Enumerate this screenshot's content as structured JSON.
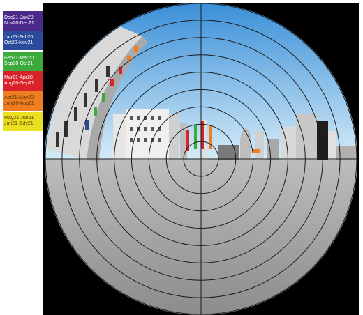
{
  "legend": {
    "items": [
      {
        "line1": "Dec21-Jan20",
        "line2": "Nov20-Dec21",
        "color": "#4b2a8c"
      },
      {
        "line1": "Jan21-Feb20",
        "line2": "Oct20-Nov21",
        "color": "#2a4a9c"
      },
      {
        "line1": "Feb21-Mar20",
        "line2": "Sep20-Oct21",
        "color": "#3caa3c"
      },
      {
        "line1": "Mar21-Apr20",
        "line2": "Aug20-Sep21",
        "color": "#d8232a"
      },
      {
        "line1": "Apr21-May20",
        "line2": "July20-Aug21",
        "color": "#ef7d22"
      },
      {
        "line1": "May21-Jun21",
        "line2": "Jun21-July21",
        "color": "#e8e020"
      }
    ]
  },
  "scene": {
    "sky_top": "#3a8fd8",
    "sky_horizon": "#d6ecf8",
    "ground": "#9a9a9a",
    "grid_color": "#1a1a1a"
  }
}
